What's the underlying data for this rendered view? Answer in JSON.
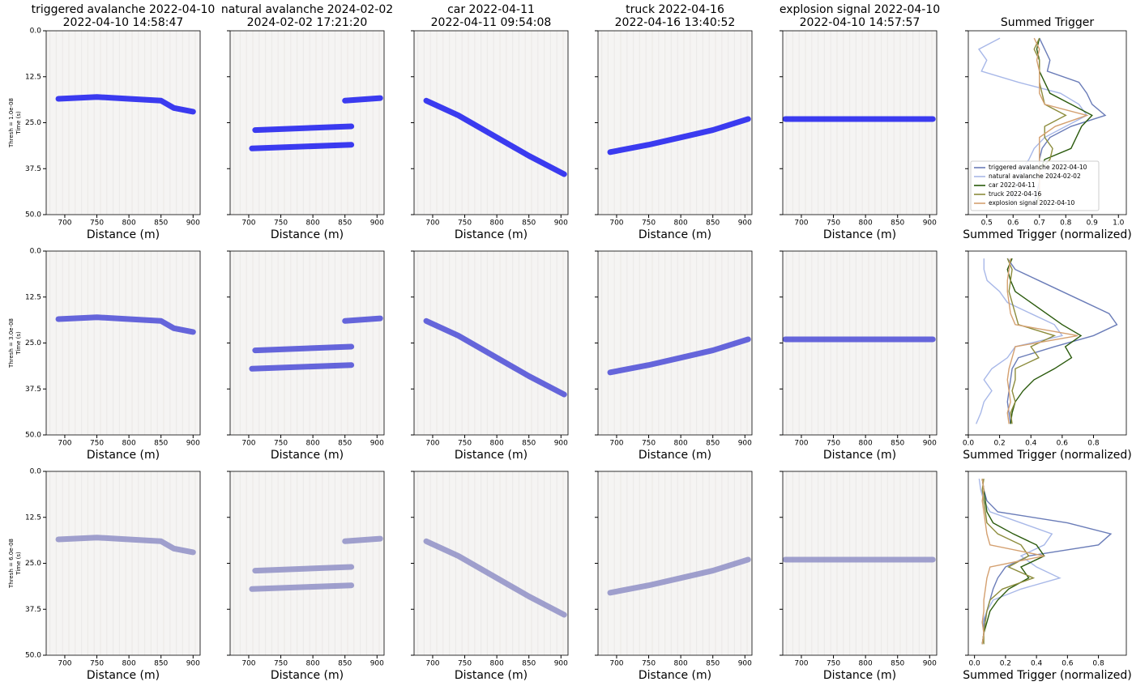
{
  "chart_data": [
    {
      "type": "heatmap",
      "title": "triggered avalanche 2022-04-10",
      "subtitle": "2022-04-10 14:58:47",
      "threshold_label": "Thresh = 1.0e-08",
      "ylabel": "Time (s)",
      "xlabel": "Distance (m)",
      "xlim": [
        671,
        911
      ],
      "xticks": [
        700,
        750,
        800,
        850,
        900
      ],
      "ylim": [
        50,
        0
      ],
      "yticks": [
        {
          "value": 0,
          "label": "0.0"
        },
        12.5,
        {
          "value": 25,
          "label": "25.0"
        },
        37.5,
        {
          "value": 50,
          "label": "50.0"
        }
      ],
      "color": "#1a1aee",
      "signal": [
        {
          "x": [
            690,
            750,
            800,
            850,
            870,
            900
          ],
          "y": [
            18.5,
            18,
            18.5,
            19,
            21,
            22
          ]
        }
      ]
    },
    {
      "type": "heatmap",
      "title": "natural avalanche 2024-02-02",
      "subtitle": "2024-02-02 17:21:20",
      "xlabel": "Distance (m)",
      "xlim": [
        671,
        911
      ],
      "xticks": [
        700,
        750,
        800,
        850,
        900
      ],
      "ylim": [
        50,
        0
      ],
      "yticks": [
        0,
        12.5,
        25,
        37.5,
        50
      ],
      "color": "#1a1aee",
      "signal": [
        {
          "x": [
            850,
            905
          ],
          "y": [
            19,
            18.3
          ]
        },
        {
          "x": [
            710,
            860
          ],
          "y": [
            27,
            26
          ]
        },
        {
          "x": [
            705,
            860
          ],
          "y": [
            32,
            31
          ]
        }
      ]
    },
    {
      "type": "heatmap",
      "title": "car 2022-04-11",
      "subtitle": "2022-04-11 09:54:08",
      "xlabel": "Distance (m)",
      "xlim": [
        671,
        911
      ],
      "xticks": [
        700,
        750,
        800,
        850,
        900
      ],
      "ylim": [
        50,
        0
      ],
      "yticks": [
        0,
        12.5,
        25,
        37.5,
        50
      ],
      "color": "#1a1aee",
      "signal": [
        {
          "x": [
            690,
            740,
            800,
            850,
            905
          ],
          "y": [
            19,
            23,
            29,
            34,
            39
          ]
        }
      ]
    },
    {
      "type": "heatmap",
      "title": "truck 2022-04-16",
      "subtitle": "2022-04-16 13:40:52",
      "xlabel": "Distance (m)",
      "xlim": [
        671,
        911
      ],
      "xticks": [
        700,
        750,
        800,
        850,
        900
      ],
      "ylim": [
        50,
        0
      ],
      "yticks": [
        0,
        12.5,
        25,
        37.5,
        50
      ],
      "color": "#1a1aee",
      "signal": [
        {
          "x": [
            690,
            750,
            800,
            850,
            905
          ],
          "y": [
            33,
            31,
            29,
            27,
            24
          ]
        }
      ]
    },
    {
      "type": "heatmap",
      "title": "explosion signal 2022-04-10",
      "subtitle": "2022-04-10 14:57:57",
      "xlabel": "Distance (m)",
      "xlim": [
        671,
        911
      ],
      "xticks": [
        700,
        750,
        800,
        850,
        900
      ],
      "ylim": [
        50,
        0
      ],
      "yticks": [
        0,
        12.5,
        25,
        37.5,
        50
      ],
      "color": "#1a1aee",
      "signal": [
        {
          "x": [
            675,
            905
          ],
          "y": [
            24,
            24
          ]
        }
      ]
    },
    {
      "type": "line",
      "title": "Summed Trigger",
      "xlabel": "Summed Trigger (normalized)",
      "xlim": [
        0.43,
        1.03
      ],
      "xticks": [
        0.5,
        0.6,
        0.7,
        0.8,
        0.9,
        {
          "value": 1,
          "label": "1.0"
        }
      ],
      "ylim": [
        50,
        0
      ],
      "yticks": [
        0,
        12.5,
        25,
        37.5,
        50
      ],
      "legend": "lower left",
      "y": [
        2,
        5,
        8,
        11,
        14,
        17,
        20,
        23,
        26,
        29,
        32,
        35,
        38,
        41,
        44,
        47
      ],
      "series": [
        {
          "name": "triggered avalanche 2022-04-10",
          "color": "#6a7cb8",
          "values": [
            0.7,
            0.72,
            0.74,
            0.73,
            0.85,
            0.88,
            0.9,
            0.95,
            0.82,
            0.74,
            0.71,
            0.7,
            0.7,
            0.7,
            0.69,
            0.68
          ]
        },
        {
          "name": "natural avalanche 2024-02-02",
          "color": "#a8b8e8",
          "values": [
            0.55,
            0.47,
            0.5,
            0.48,
            0.62,
            0.78,
            0.85,
            0.88,
            0.8,
            0.72,
            0.68,
            0.66,
            0.63,
            0.62,
            0.6,
            0.6
          ]
        },
        {
          "name": "car 2022-04-11",
          "color": "#2a5a0c",
          "values": [
            0.7,
            0.69,
            0.7,
            0.7,
            0.72,
            0.74,
            0.82,
            0.9,
            0.86,
            0.84,
            0.82,
            0.72,
            0.7,
            0.7,
            0.7,
            0.69
          ]
        },
        {
          "name": "truck 2022-04-16",
          "color": "#8c8c3c",
          "values": [
            0.7,
            0.68,
            0.7,
            0.7,
            0.7,
            0.71,
            0.72,
            0.8,
            0.72,
            0.72,
            0.75,
            0.74,
            0.7,
            0.7,
            0.7,
            0.7
          ]
        },
        {
          "name": "explosion signal 2022-04-10",
          "color": "#d4a070",
          "values": [
            0.68,
            0.7,
            0.69,
            0.7,
            0.7,
            0.7,
            0.72,
            0.88,
            0.76,
            0.7,
            0.7,
            0.7,
            0.7,
            0.7,
            0.7,
            0.7
          ]
        }
      ]
    },
    {
      "type": "heatmap",
      "threshold_label": "Thresh = 3.0e-08",
      "ylabel": "Time (s)",
      "xlabel": "Distance (m)",
      "xlim": [
        671,
        911
      ],
      "xticks": [
        700,
        750,
        800,
        850,
        900
      ],
      "ylim": [
        50,
        0
      ],
      "yticks": [
        {
          "value": 0,
          "label": "0.0"
        },
        12.5,
        {
          "value": 25,
          "label": "25.0"
        },
        37.5,
        {
          "value": 50,
          "label": "50.0"
        }
      ],
      "color": "#4b4bd6",
      "signal": [
        {
          "x": [
            690,
            750,
            800,
            850,
            870,
            900
          ],
          "y": [
            18.5,
            18,
            18.5,
            19,
            21,
            22
          ]
        }
      ]
    },
    {
      "type": "heatmap",
      "xlabel": "Distance (m)",
      "xlim": [
        671,
        911
      ],
      "xticks": [
        700,
        750,
        800,
        850,
        900
      ],
      "ylim": [
        50,
        0
      ],
      "yticks": [
        0,
        12.5,
        25,
        37.5,
        50
      ],
      "color": "#4b4bd6",
      "signal": [
        {
          "x": [
            850,
            905
          ],
          "y": [
            19,
            18.3
          ]
        },
        {
          "x": [
            710,
            860
          ],
          "y": [
            27,
            26
          ]
        },
        {
          "x": [
            705,
            860
          ],
          "y": [
            32,
            31
          ]
        }
      ]
    },
    {
      "type": "heatmap",
      "xlabel": "Distance (m)",
      "xlim": [
        671,
        911
      ],
      "xticks": [
        700,
        750,
        800,
        850,
        900
      ],
      "ylim": [
        50,
        0
      ],
      "yticks": [
        0,
        12.5,
        25,
        37.5,
        50
      ],
      "color": "#4b4bd6",
      "signal": [
        {
          "x": [
            690,
            740,
            800,
            850,
            905
          ],
          "y": [
            19,
            23,
            29,
            34,
            39
          ]
        }
      ]
    },
    {
      "type": "heatmap",
      "xlabel": "Distance (m)",
      "xlim": [
        671,
        911
      ],
      "xticks": [
        700,
        750,
        800,
        850,
        900
      ],
      "ylim": [
        50,
        0
      ],
      "yticks": [
        0,
        12.5,
        25,
        37.5,
        50
      ],
      "color": "#4b4bd6",
      "signal": [
        {
          "x": [
            690,
            750,
            800,
            850,
            905
          ],
          "y": [
            33,
            31,
            29,
            27,
            24
          ]
        }
      ]
    },
    {
      "type": "heatmap",
      "xlabel": "Distance (m)",
      "xlim": [
        671,
        911
      ],
      "xticks": [
        700,
        750,
        800,
        850,
        900
      ],
      "ylim": [
        50,
        0
      ],
      "yticks": [
        0,
        12.5,
        25,
        37.5,
        50
      ],
      "color": "#4b4bd6",
      "signal": [
        {
          "x": [
            675,
            905
          ],
          "y": [
            24,
            24
          ]
        }
      ]
    },
    {
      "type": "line",
      "xlabel": "Summed Trigger (normalized)",
      "xlim": [
        0,
        1.01
      ],
      "xticks": [
        {
          "value": 0,
          "label": "0.0"
        },
        0.2,
        0.4,
        0.6,
        0.8
      ],
      "ylim": [
        50,
        0
      ],
      "yticks": [
        0,
        12.5,
        25,
        37.5,
        50
      ],
      "y": [
        2,
        5,
        8,
        11,
        14,
        17,
        20,
        23,
        26,
        29,
        32,
        35,
        38,
        41,
        44,
        47
      ],
      "series": [
        {
          "color": "#6a7cb8",
          "values": [
            0.25,
            0.3,
            0.45,
            0.6,
            0.75,
            0.9,
            0.95,
            0.8,
            0.55,
            0.32,
            0.28,
            0.27,
            0.26,
            0.25,
            0.26,
            0.27
          ]
        },
        {
          "color": "#a8b8e8",
          "values": [
            0.1,
            0.1,
            0.12,
            0.2,
            0.25,
            0.4,
            0.55,
            0.6,
            0.3,
            0.25,
            0.15,
            0.1,
            0.15,
            0.1,
            0.08,
            0.05
          ]
        },
        {
          "color": "#2a5a0c",
          "values": [
            0.28,
            0.25,
            0.27,
            0.3,
            0.4,
            0.5,
            0.6,
            0.72,
            0.62,
            0.66,
            0.55,
            0.42,
            0.35,
            0.3,
            0.28,
            0.27
          ]
        },
        {
          "color": "#8c8c3c",
          "values": [
            0.25,
            0.28,
            0.27,
            0.26,
            0.28,
            0.3,
            0.32,
            0.55,
            0.4,
            0.45,
            0.3,
            0.3,
            0.28,
            0.3,
            0.27,
            0.28
          ]
        },
        {
          "color": "#d4a070",
          "values": [
            0.27,
            0.26,
            0.25,
            0.25,
            0.26,
            0.27,
            0.3,
            0.7,
            0.3,
            0.28,
            0.26,
            0.25,
            0.26,
            0.27,
            0.25,
            0.26
          ]
        }
      ]
    },
    {
      "type": "heatmap",
      "threshold_label": "Thresh = 6.0e-08",
      "ylabel": "Time (s)",
      "xlabel": "Distance (m)",
      "xlim": [
        671,
        911
      ],
      "xticks": [
        700,
        750,
        800,
        850,
        900
      ],
      "ylim": [
        50,
        0
      ],
      "yticks": [
        {
          "value": 0,
          "label": "0.0"
        },
        12.5,
        {
          "value": 25,
          "label": "25.0"
        },
        37.5,
        {
          "value": 50,
          "label": "50.0"
        }
      ],
      "color": "#8f8fc6",
      "signal": [
        {
          "x": [
            690,
            750,
            800,
            850,
            870,
            900
          ],
          "y": [
            18.5,
            18,
            18.5,
            19,
            21,
            22
          ]
        }
      ]
    },
    {
      "type": "heatmap",
      "xlabel": "Distance (m)",
      "xlim": [
        671,
        911
      ],
      "xticks": [
        700,
        750,
        800,
        850,
        900
      ],
      "ylim": [
        50,
        0
      ],
      "yticks": [
        0,
        12.5,
        25,
        37.5,
        50
      ],
      "color": "#8f8fc6",
      "signal": [
        {
          "x": [
            850,
            905
          ],
          "y": [
            19,
            18.3
          ]
        },
        {
          "x": [
            710,
            860
          ],
          "y": [
            27,
            26
          ]
        },
        {
          "x": [
            705,
            860
          ],
          "y": [
            32,
            31
          ]
        }
      ]
    },
    {
      "type": "heatmap",
      "xlabel": "Distance (m)",
      "xlim": [
        671,
        911
      ],
      "xticks": [
        700,
        750,
        800,
        850,
        900
      ],
      "ylim": [
        50,
        0
      ],
      "yticks": [
        0,
        12.5,
        25,
        37.5,
        50
      ],
      "color": "#8f8fc6",
      "signal": [
        {
          "x": [
            690,
            740,
            800,
            850,
            905
          ],
          "y": [
            19,
            23,
            29,
            34,
            39
          ]
        }
      ]
    },
    {
      "type": "heatmap",
      "xlabel": "Distance (m)",
      "xlim": [
        671,
        911
      ],
      "xticks": [
        700,
        750,
        800,
        850,
        900
      ],
      "ylim": [
        50,
        0
      ],
      "yticks": [
        0,
        12.5,
        25,
        37.5,
        50
      ],
      "color": "#8f8fc6",
      "signal": [
        {
          "x": [
            690,
            750,
            800,
            850,
            905
          ],
          "y": [
            33,
            31,
            29,
            27,
            24
          ]
        }
      ]
    },
    {
      "type": "heatmap",
      "xlabel": "Distance (m)",
      "xlim": [
        671,
        911
      ],
      "xticks": [
        700,
        750,
        800,
        850,
        900
      ],
      "ylim": [
        50,
        0
      ],
      "yticks": [
        0,
        12.5,
        25,
        37.5,
        50
      ],
      "color": "#8f8fc6",
      "signal": [
        {
          "x": [
            675,
            905
          ],
          "y": [
            24,
            24
          ]
        }
      ]
    },
    {
      "type": "line",
      "xlabel": "Summed Trigger (normalized)",
      "xlim": [
        -0.04,
        0.98
      ],
      "xticks": [
        {
          "value": 0,
          "label": "0.0"
        },
        0.2,
        0.4,
        0.6,
        0.8
      ],
      "ylim": [
        50,
        0
      ],
      "yticks": [
        0,
        12.5,
        25,
        37.5,
        50
      ],
      "y": [
        2,
        5,
        8,
        11,
        14,
        17,
        20,
        23,
        26,
        29,
        32,
        35,
        38,
        41,
        44,
        47
      ],
      "series": [
        {
          "color": "#6a7cb8",
          "values": [
            0.05,
            0.06,
            0.08,
            0.15,
            0.6,
            0.88,
            0.8,
            0.35,
            0.2,
            0.15,
            0.12,
            0.1,
            0.08,
            0.06,
            0.06,
            0.05
          ]
        },
        {
          "color": "#a8b8e8",
          "values": [
            0.03,
            0.04,
            0.06,
            0.1,
            0.3,
            0.5,
            0.45,
            0.3,
            0.4,
            0.55,
            0.3,
            0.12,
            0.08,
            0.05,
            0.06,
            0.05
          ]
        },
        {
          "color": "#2a5a0c",
          "values": [
            0.05,
            0.06,
            0.07,
            0.08,
            0.12,
            0.25,
            0.4,
            0.45,
            0.3,
            0.35,
            0.22,
            0.15,
            0.1,
            0.08,
            0.06,
            0.05
          ]
        },
        {
          "color": "#8c8c3c",
          "values": [
            0.06,
            0.05,
            0.06,
            0.07,
            0.08,
            0.15,
            0.3,
            0.35,
            0.22,
            0.38,
            0.18,
            0.1,
            0.08,
            0.07,
            0.06,
            0.06
          ]
        },
        {
          "color": "#d4a070",
          "values": [
            0.05,
            0.06,
            0.05,
            0.06,
            0.07,
            0.08,
            0.1,
            0.45,
            0.1,
            0.08,
            0.07,
            0.06,
            0.06,
            0.05,
            0.06,
            0.05
          ]
        }
      ]
    }
  ]
}
